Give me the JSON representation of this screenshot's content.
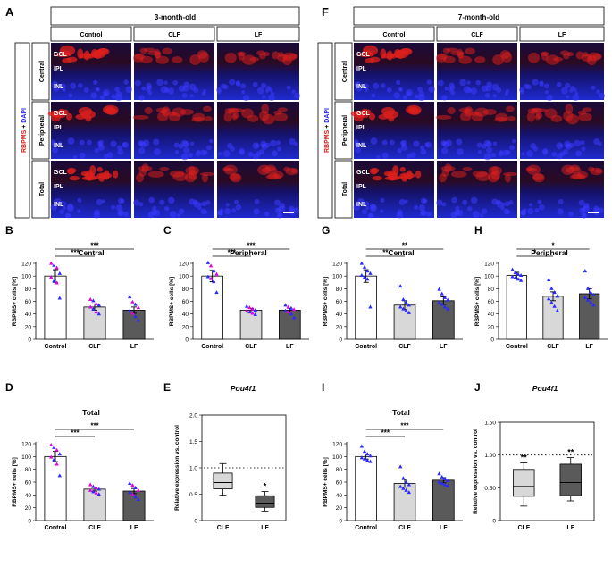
{
  "colors": {
    "red": "#e0201c",
    "blue": "#2a2aff",
    "magenta": "#e000e0",
    "light_bar": "#d8d8d8",
    "mid_bar": "#bdbdbd",
    "dark_bar": "#5a5a5a",
    "micro_bg": "#0b0b6a"
  },
  "panel_letters": {
    "A": "A",
    "F": "F",
    "B": "B",
    "C": "C",
    "D": "D",
    "E": "E",
    "G": "G",
    "H": "H",
    "I": "I",
    "J": "J"
  },
  "micro": {
    "left_title": "3-month-old",
    "right_title": "7-month-old",
    "columns": [
      "Control",
      "CLF",
      "LF"
    ],
    "rows": [
      "Central",
      "Peripheral",
      "Total"
    ],
    "stain": {
      "red": "RBPMS",
      "plus": " + ",
      "blue": "DAPI"
    },
    "layers": [
      "GCL",
      "IPL",
      "INL"
    ]
  },
  "chart_data": [
    {
      "id": "B",
      "type": "bar",
      "title": "Central",
      "categories": [
        "Control",
        "CLF",
        "LF"
      ],
      "values": [
        100,
        51,
        46
      ],
      "sem": [
        10,
        5,
        5
      ],
      "ylabel": "RBPMS+ cells [%]",
      "ylim": [
        0,
        120
      ],
      "yticks": [
        "0",
        "20",
        "40",
        "60",
        "80",
        "100",
        "120"
      ],
      "sig": [
        {
          "from": "Control",
          "to": "CLF",
          "label": "***"
        },
        {
          "from": "Control",
          "to": "LF",
          "label": "***"
        }
      ],
      "points": {
        "Control": [
          {
            "v": 120,
            "c": "m"
          },
          {
            "v": 117,
            "c": "b"
          },
          {
            "v": 113,
            "c": "m"
          },
          {
            "v": 104,
            "c": "b"
          },
          {
            "v": 98,
            "c": "m"
          },
          {
            "v": 92,
            "c": "b"
          },
          {
            "v": 89,
            "c": "m"
          },
          {
            "v": 65,
            "c": "b"
          }
        ],
        "CLF": [
          {
            "v": 63,
            "c": "m"
          },
          {
            "v": 61,
            "c": "b"
          },
          {
            "v": 56,
            "c": "m"
          },
          {
            "v": 54,
            "c": "b"
          },
          {
            "v": 51,
            "c": "m"
          },
          {
            "v": 48,
            "c": "b"
          },
          {
            "v": 43,
            "c": "m"
          },
          {
            "v": 40,
            "c": "b"
          }
        ],
        "LF": [
          {
            "v": 67,
            "c": "b"
          },
          {
            "v": 59,
            "c": "m"
          },
          {
            "v": 55,
            "c": "b"
          },
          {
            "v": 50,
            "c": "m"
          },
          {
            "v": 45,
            "c": "b"
          },
          {
            "v": 41,
            "c": "m"
          },
          {
            "v": 36,
            "c": "b"
          },
          {
            "v": 30,
            "c": "b"
          }
        ]
      }
    },
    {
      "id": "C",
      "type": "bar",
      "title": "Peripheral",
      "categories": [
        "Control",
        "CLF",
        "LF"
      ],
      "values": [
        100,
        46,
        46
      ],
      "sem": [
        9,
        3,
        3
      ],
      "ylabel": "RBPMS+ cells [%]",
      "ylim": [
        0,
        120
      ],
      "yticks": [
        "0",
        "20",
        "40",
        "60",
        "80",
        "100",
        "120"
      ],
      "sig": [
        {
          "from": "Control",
          "to": "CLF",
          "label": "***"
        },
        {
          "from": "Control",
          "to": "LF",
          "label": "***"
        }
      ],
      "points": {
        "Control": [
          {
            "v": 121,
            "c": "b"
          },
          {
            "v": 116,
            "c": "m"
          },
          {
            "v": 108,
            "c": "b"
          },
          {
            "v": 103,
            "c": "m"
          },
          {
            "v": 99,
            "c": "b"
          },
          {
            "v": 96,
            "c": "m"
          },
          {
            "v": 91,
            "c": "b"
          },
          {
            "v": 74,
            "c": "b"
          }
        ],
        "CLF": [
          {
            "v": 52,
            "c": "b"
          },
          {
            "v": 50,
            "c": "m"
          },
          {
            "v": 48,
            "c": "m"
          },
          {
            "v": 46,
            "c": "b"
          },
          {
            "v": 45,
            "c": "m"
          },
          {
            "v": 43,
            "c": "b"
          },
          {
            "v": 41,
            "c": "m"
          },
          {
            "v": 39,
            "c": "b"
          }
        ],
        "LF": [
          {
            "v": 54,
            "c": "b"
          },
          {
            "v": 51,
            "c": "m"
          },
          {
            "v": 49,
            "c": "b"
          },
          {
            "v": 47,
            "c": "m"
          },
          {
            "v": 45,
            "c": "b"
          },
          {
            "v": 43,
            "c": "m"
          },
          {
            "v": 40,
            "c": "b"
          },
          {
            "v": 34,
            "c": "b"
          }
        ]
      }
    },
    {
      "id": "D",
      "type": "bar",
      "title": "Total",
      "categories": [
        "Control",
        "CLF",
        "LF"
      ],
      "values": [
        100,
        49,
        46
      ],
      "sem": [
        8,
        3,
        4
      ],
      "ylabel": "RBPMS+ cells [%]",
      "ylim": [
        0,
        120
      ],
      "yticks": [
        "0",
        "20",
        "40",
        "60",
        "80",
        "100",
        "120"
      ],
      "sig": [
        {
          "from": "Control",
          "to": "CLF",
          "label": "***"
        },
        {
          "from": "Control",
          "to": "LF",
          "label": "***"
        }
      ],
      "points": {
        "Control": [
          {
            "v": 118,
            "c": "m"
          },
          {
            "v": 114,
            "c": "b"
          },
          {
            "v": 110,
            "c": "m"
          },
          {
            "v": 104,
            "c": "b"
          },
          {
            "v": 99,
            "c": "m"
          },
          {
            "v": 95,
            "c": "b"
          },
          {
            "v": 88,
            "c": "m"
          },
          {
            "v": 70,
            "c": "b"
          }
        ],
        "CLF": [
          {
            "v": 56,
            "c": "m"
          },
          {
            "v": 53,
            "c": "b"
          },
          {
            "v": 51,
            "c": "m"
          },
          {
            "v": 49,
            "c": "b"
          },
          {
            "v": 47,
            "c": "m"
          },
          {
            "v": 45,
            "c": "b"
          },
          {
            "v": 43,
            "c": "m"
          },
          {
            "v": 41,
            "c": "b"
          }
        ],
        "LF": [
          {
            "v": 58,
            "c": "b"
          },
          {
            "v": 55,
            "c": "m"
          },
          {
            "v": 51,
            "c": "b"
          },
          {
            "v": 47,
            "c": "m"
          },
          {
            "v": 44,
            "c": "b"
          },
          {
            "v": 41,
            "c": "m"
          },
          {
            "v": 37,
            "c": "b"
          },
          {
            "v": 33,
            "c": "b"
          }
        ]
      }
    },
    {
      "id": "G",
      "type": "bar",
      "title": "Central",
      "categories": [
        "Control",
        "CLF",
        "LF"
      ],
      "values": [
        100,
        54,
        61
      ],
      "sem": [
        10,
        7,
        6
      ],
      "ylabel": "RBPMS+ cells [%]",
      "ylim": [
        0,
        120
      ],
      "yticks": [
        "0",
        "20",
        "40",
        "60",
        "80",
        "100",
        "120"
      ],
      "sig": [
        {
          "from": "Control",
          "to": "CLF",
          "label": "**"
        },
        {
          "from": "Control",
          "to": "LF",
          "label": "**"
        }
      ],
      "points": {
        "Control": [
          {
            "v": 120,
            "c": "b"
          },
          {
            "v": 114,
            "c": "b"
          },
          {
            "v": 108,
            "c": "b"
          },
          {
            "v": 104,
            "c": "b"
          },
          {
            "v": 101,
            "c": "b"
          },
          {
            "v": 98,
            "c": "b"
          },
          {
            "v": 95,
            "c": "b"
          },
          {
            "v": 51,
            "c": "b"
          }
        ],
        "CLF": [
          {
            "v": 84,
            "c": "b"
          },
          {
            "v": 63,
            "c": "b"
          },
          {
            "v": 58,
            "c": "b"
          },
          {
            "v": 54,
            "c": "b"
          },
          {
            "v": 51,
            "c": "b"
          },
          {
            "v": 48,
            "c": "b"
          },
          {
            "v": 45,
            "c": "b"
          },
          {
            "v": 42,
            "c": "b"
          }
        ],
        "LF": [
          {
            "v": 79,
            "c": "b"
          },
          {
            "v": 72,
            "c": "b"
          },
          {
            "v": 66,
            "c": "b"
          },
          {
            "v": 62,
            "c": "b"
          },
          {
            "v": 58,
            "c": "b"
          },
          {
            "v": 55,
            "c": "b"
          },
          {
            "v": 51,
            "c": "b"
          },
          {
            "v": 48,
            "c": "b"
          }
        ]
      }
    },
    {
      "id": "H",
      "type": "bar",
      "title": "Peripheral",
      "categories": [
        "Control",
        "CLF",
        "LF"
      ],
      "values": [
        101,
        68,
        72
      ],
      "sem": [
        5,
        7,
        8
      ],
      "ylabel": "RBPMS+ cells [%]",
      "ylim": [
        0,
        120
      ],
      "yticks": [
        "0",
        "20",
        "40",
        "60",
        "80",
        "100",
        "120"
      ],
      "sig": [
        {
          "from": "Control",
          "to": "CLF",
          "label": "*"
        },
        {
          "from": "Control",
          "to": "LF",
          "label": "*"
        }
      ],
      "points": {
        "Control": [
          {
            "v": 110,
            "c": "b"
          },
          {
            "v": 105,
            "c": "b"
          },
          {
            "v": 103,
            "c": "b"
          },
          {
            "v": 101,
            "c": "b"
          },
          {
            "v": 99,
            "c": "b"
          },
          {
            "v": 97,
            "c": "b"
          },
          {
            "v": 95,
            "c": "b"
          },
          {
            "v": 93,
            "c": "b"
          }
        ],
        "CLF": [
          {
            "v": 94,
            "c": "b"
          },
          {
            "v": 80,
            "c": "b"
          },
          {
            "v": 74,
            "c": "b"
          },
          {
            "v": 68,
            "c": "b"
          },
          {
            "v": 64,
            "c": "b"
          },
          {
            "v": 58,
            "c": "b"
          },
          {
            "v": 52,
            "c": "b"
          },
          {
            "v": 45,
            "c": "b"
          }
        ],
        "LF": [
          {
            "v": 108,
            "c": "b"
          },
          {
            "v": 80,
            "c": "b"
          },
          {
            "v": 74,
            "c": "b"
          },
          {
            "v": 70,
            "c": "b"
          },
          {
            "v": 66,
            "c": "b"
          },
          {
            "v": 62,
            "c": "b"
          },
          {
            "v": 58,
            "c": "b"
          },
          {
            "v": 54,
            "c": "b"
          }
        ]
      }
    },
    {
      "id": "I",
      "type": "bar",
      "title": "Total",
      "categories": [
        "Control",
        "CLF",
        "LF"
      ],
      "values": [
        100,
        58,
        63
      ],
      "sem": [
        4,
        6,
        4
      ],
      "ylabel": "RBPMS+ cells [%]",
      "ylim": [
        0,
        120
      ],
      "yticks": [
        "0",
        "20",
        "40",
        "60",
        "80",
        "100",
        "120"
      ],
      "sig": [
        {
          "from": "Control",
          "to": "CLF",
          "label": "***"
        },
        {
          "from": "Control",
          "to": "LF",
          "label": "***"
        }
      ],
      "points": {
        "Control": [
          {
            "v": 116,
            "c": "b"
          },
          {
            "v": 108,
            "c": "b"
          },
          {
            "v": 104,
            "c": "b"
          },
          {
            "v": 101,
            "c": "b"
          },
          {
            "v": 98,
            "c": "b"
          },
          {
            "v": 96,
            "c": "b"
          },
          {
            "v": 94,
            "c": "b"
          },
          {
            "v": 92,
            "c": "b"
          }
        ],
        "CLF": [
          {
            "v": 84,
            "c": "b"
          },
          {
            "v": 66,
            "c": "b"
          },
          {
            "v": 60,
            "c": "b"
          },
          {
            "v": 56,
            "c": "b"
          },
          {
            "v": 53,
            "c": "b"
          },
          {
            "v": 50,
            "c": "b"
          },
          {
            "v": 47,
            "c": "b"
          },
          {
            "v": 44,
            "c": "b"
          }
        ],
        "LF": [
          {
            "v": 73,
            "c": "b"
          },
          {
            "v": 68,
            "c": "b"
          },
          {
            "v": 65,
            "c": "b"
          },
          {
            "v": 62,
            "c": "b"
          },
          {
            "v": 60,
            "c": "b"
          },
          {
            "v": 58,
            "c": "b"
          },
          {
            "v": 56,
            "c": "b"
          },
          {
            "v": 54,
            "c": "b"
          }
        ]
      }
    },
    {
      "id": "E",
      "type": "box",
      "title": "Pou4f1",
      "categories": [
        "CLF",
        "LF"
      ],
      "ylabel": "Relative expression vs. control",
      "ylim": [
        0,
        2
      ],
      "yticks": [
        "0",
        "0.5",
        "1.0",
        "1.5",
        "2.0"
      ],
      "reference": 1.0,
      "boxes": [
        {
          "min": 0.48,
          "q1": 0.6,
          "median": 0.72,
          "q3": 0.9,
          "max": 1.08,
          "sig": ""
        },
        {
          "min": 0.18,
          "q1": 0.25,
          "median": 0.33,
          "q3": 0.47,
          "max": 0.55,
          "sig": "*"
        }
      ]
    },
    {
      "id": "J",
      "type": "box",
      "title": "Pou4f1",
      "categories": [
        "CLF",
        "LF"
      ],
      "ylabel": "Relative expression vs. control",
      "ylim": [
        0,
        1.5
      ],
      "yticks": [
        "0",
        "0.50",
        "1.00",
        "1.50"
      ],
      "reference": 1.0,
      "boxes": [
        {
          "min": 0.22,
          "q1": 0.37,
          "median": 0.52,
          "q3": 0.78,
          "max": 0.88,
          "sig": "**"
        },
        {
          "min": 0.3,
          "q1": 0.38,
          "median": 0.58,
          "q3": 0.86,
          "max": 0.96,
          "sig": "**"
        }
      ]
    }
  ]
}
